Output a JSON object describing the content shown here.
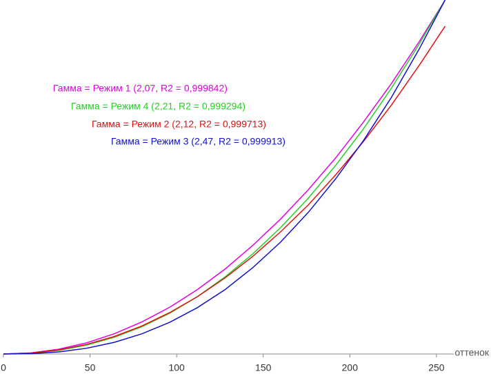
{
  "chart_data": {
    "type": "line",
    "x_label": "оттенок",
    "x": [
      0,
      16,
      32,
      48,
      64,
      80,
      96,
      112,
      128,
      144,
      160,
      176,
      192,
      208,
      224,
      240,
      255
    ],
    "xlim": [
      0,
      260
    ],
    "xticks": [
      0,
      50,
      100,
      150,
      200,
      250
    ],
    "ylim": [
      0,
      100
    ],
    "series": [
      {
        "name": "Гамма = Режим 1 (2,07, R2 = 0,999842)",
        "color": "#e000e0",
        "values": [
          0,
          0.32,
          1.36,
          3.15,
          5.72,
          9.08,
          13.2,
          18.2,
          24.0,
          30.7,
          38.1,
          46.4,
          55.5,
          65.6,
          76.4,
          88.2,
          100
        ]
      },
      {
        "name": "Гамма = Режим 4 (2,21, R2 = 0,999294)",
        "color": "#22d022",
        "values": [
          0,
          0.22,
          1.02,
          2.5,
          4.72,
          7.72,
          11.5,
          16.2,
          21.8,
          28.3,
          35.7,
          44.0,
          53.4,
          63.7,
          75.1,
          87.5,
          100
        ]
      },
      {
        "name": "Гамма = Режим 2 (2,12, R2 = 0,999713)",
        "color": "#e01010",
        "values": [
          0,
          0.26,
          1.14,
          2.69,
          4.95,
          7.94,
          11.7,
          16.2,
          21.5,
          27.6,
          34.5,
          42.1,
          50.7,
          60.1,
          70.3,
          81.5,
          92.6
        ]
      },
      {
        "name": "Гамма = Режим 3 (2,47, R2 = 0,999913)",
        "color": "#1010d0",
        "values": [
          0,
          0.11,
          0.59,
          1.62,
          3.29,
          5.71,
          8.96,
          13.1,
          18.2,
          24.4,
          31.6,
          40.0,
          49.6,
          60.4,
          72.5,
          86.1,
          100
        ]
      }
    ]
  }
}
